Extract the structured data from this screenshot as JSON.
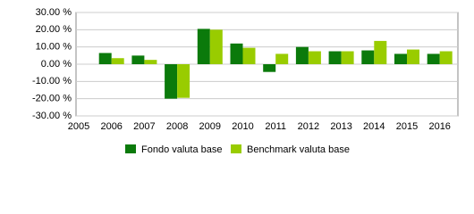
{
  "chart_data": {
    "type": "bar",
    "categories": [
      "2005",
      "2006",
      "2007",
      "2008",
      "2009",
      "2010",
      "2011",
      "2012",
      "2013",
      "2014",
      "2015",
      "2016"
    ],
    "series": [
      {
        "name": "Fondo valuta base",
        "color": "#0b7a0b",
        "values": [
          null,
          6.5,
          5,
          -20,
          20.5,
          12,
          -4.5,
          10,
          7.5,
          8,
          6,
          6
        ]
      },
      {
        "name": "Benchmark valuta base",
        "color": "#99cc00",
        "values": [
          null,
          3.5,
          2.5,
          -19.5,
          20,
          9.5,
          6,
          7.5,
          7.5,
          13.5,
          8.5,
          7.5
        ]
      }
    ],
    "ylim": [
      -30,
      30
    ],
    "yticks": [
      {
        "value": -30,
        "label": "-30.00 %"
      },
      {
        "value": -20,
        "label": "-20.00 %"
      },
      {
        "value": -10,
        "label": "-10.00 %"
      },
      {
        "value": 0,
        "label": "0.00 %"
      },
      {
        "value": 10,
        "label": "10.00 %"
      },
      {
        "value": 20,
        "label": "20.00 %"
      },
      {
        "value": 30,
        "label": "30.00 %"
      }
    ],
    "grid": true
  }
}
